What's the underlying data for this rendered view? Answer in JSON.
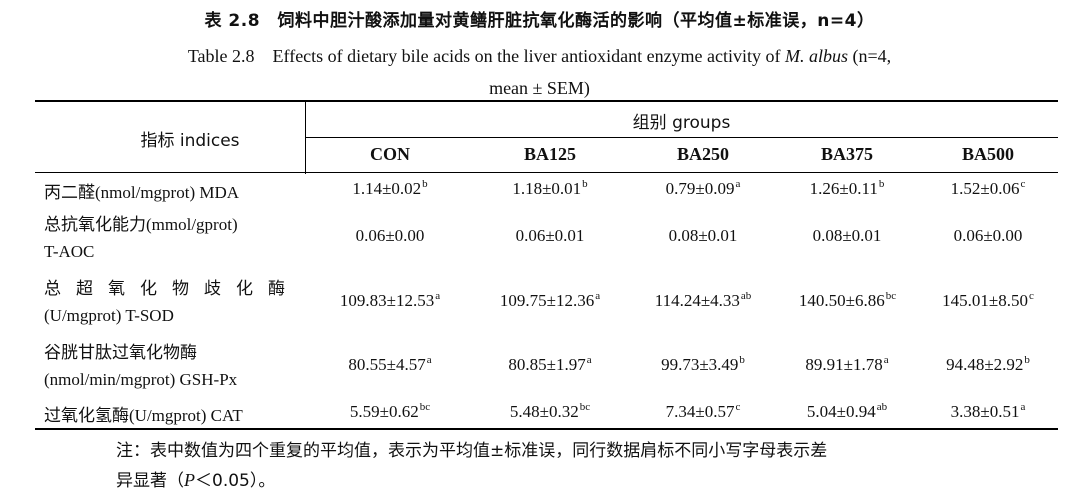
{
  "title_cn": "表 2.8　饲料中胆汁酸添加量对黄鳝肝脏抗氧化酶活的影响（平均值±标准误，n=4）",
  "title_en_label": "Table 2.8",
  "title_en_text_1": "Effects of dietary bile acids on the liver antioxidant enzyme activity of ",
  "title_en_species": "M. albus",
  "title_en_text_2": " (n=4,",
  "title_en_line2": "mean ± SEM)",
  "header": {
    "indices": "指标 indices",
    "groups": "组别  groups",
    "columns": [
      "CON",
      "BA125",
      "BA250",
      "BA375",
      "BA500"
    ]
  },
  "rows": [
    {
      "label_l1": "丙二醛(nmol/mgprot) MDA",
      "label_l2": "",
      "values": [
        [
          "1.14±0.02",
          "b"
        ],
        [
          "1.18±0.01",
          "b"
        ],
        [
          "0.79±0.09",
          "a"
        ],
        [
          "1.26±0.11",
          "b"
        ],
        [
          "1.52±0.06",
          "c"
        ]
      ]
    },
    {
      "label_l1": "总抗氧化能力(mmol/gprot)",
      "label_l2": "T-AOC",
      "values": [
        [
          "0.06±0.00",
          ""
        ],
        [
          "0.06±0.01",
          ""
        ],
        [
          "0.08±0.01",
          ""
        ],
        [
          "0.08±0.01",
          ""
        ],
        [
          "0.06±0.00",
          ""
        ]
      ]
    },
    {
      "label_l1": "总超氧化物歧化酶",
      "label_l2": "(U/mgprot) T-SOD",
      "values": [
        [
          "109.83±12.53",
          "a"
        ],
        [
          "109.75±12.36",
          "a"
        ],
        [
          "114.24±4.33",
          "ab"
        ],
        [
          "140.50±6.86",
          "bc"
        ],
        [
          "145.01±8.50",
          "c"
        ]
      ]
    },
    {
      "label_l1": "谷胱甘肽过氧化物酶",
      "label_l2": "(nmol/min/mgprot) GSH-Px",
      "values": [
        [
          "80.55±4.57",
          "a"
        ],
        [
          "80.85±1.97",
          "a"
        ],
        [
          "99.73±3.49",
          "b"
        ],
        [
          "89.91±1.78",
          "a"
        ],
        [
          "94.48±2.92",
          "b"
        ]
      ]
    },
    {
      "label_l1": "过氧化氢酶(U/mgprot) CAT",
      "label_l2": "",
      "values": [
        [
          "5.59±0.62",
          "bc"
        ],
        [
          "5.48±0.32",
          "bc"
        ],
        [
          "7.34±0.57",
          "c"
        ],
        [
          "5.04±0.94",
          "ab"
        ],
        [
          "3.38±0.51",
          "a"
        ]
      ]
    }
  ],
  "note_line1": "注：表中数值为四个重复的平均值，表示为平均值±标准误，同行数据肩标不同小写字母表示差",
  "note_line2_pre": "异显著（",
  "note_line2_p": "P",
  "note_line2_post": "＜0.05）。"
}
